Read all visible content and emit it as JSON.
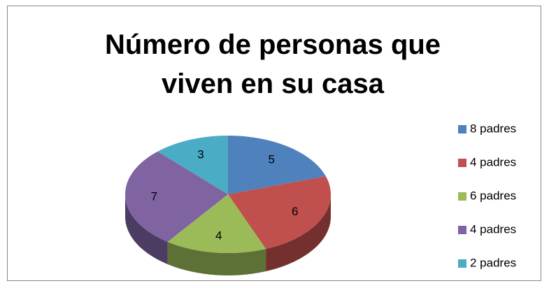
{
  "chart_data": {
    "type": "pie",
    "title": "Número de personas que viven en su casa",
    "categories": [
      "8 padres",
      "4 padres",
      "6 padres",
      "4 padres",
      "2 padres"
    ],
    "values": [
      5,
      6,
      4,
      7,
      3
    ],
    "colors": [
      "#4f81bd",
      "#c0504d",
      "#9bbb59",
      "#8064a2",
      "#4bacc6"
    ],
    "legend": "right"
  }
}
